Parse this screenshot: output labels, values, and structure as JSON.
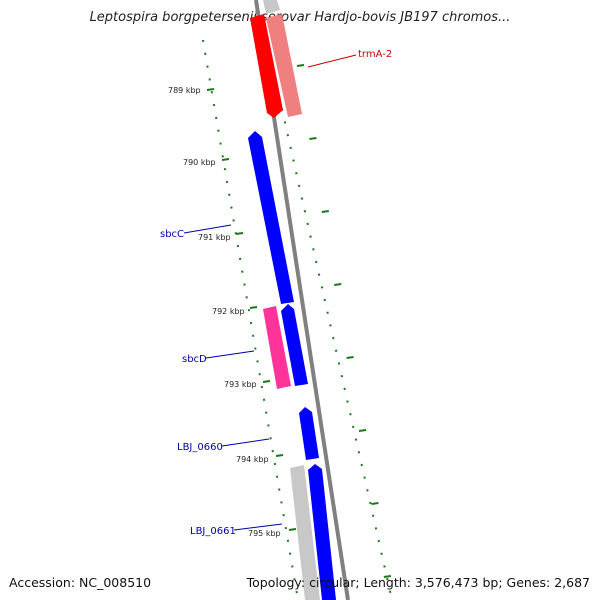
{
  "title": "Leptospira borgpetersenii serovar Hardjo-bovis JB197 chromos...",
  "footer": {
    "accession": "Accession: NC_008510",
    "summary": "Topology: circular; Length: 3,576,473 bp; Genes: 2,687"
  },
  "colors": {
    "backbone": "#808080",
    "tick": "#1a7a1a",
    "forward_gene": "#0000ff",
    "reverse_gene": "#ff0000",
    "pink_gene": "#ff3399",
    "light_red_gene": "#f08080",
    "grey_gene": "#c8c8c8",
    "label_blue": "#0000aa",
    "label_red": "#cc0000"
  },
  "ticks": [
    {
      "label": "789 kbp"
    },
    {
      "label": "790 kbp"
    },
    {
      "label": "791 kbp"
    },
    {
      "label": "792 kbp"
    },
    {
      "label": "793 kbp"
    },
    {
      "label": "794 kbp"
    },
    {
      "label": "795 kbp"
    }
  ],
  "gene_labels": [
    {
      "text": "trmA-2",
      "color": "#cc0000"
    },
    {
      "text": "sbcC",
      "color": "#0000aa"
    },
    {
      "text": "sbcD",
      "color": "#0000aa"
    },
    {
      "text": "LBJ_0660",
      "color": "#0000aa"
    },
    {
      "text": "LBJ_0661",
      "color": "#0000aa"
    }
  ]
}
